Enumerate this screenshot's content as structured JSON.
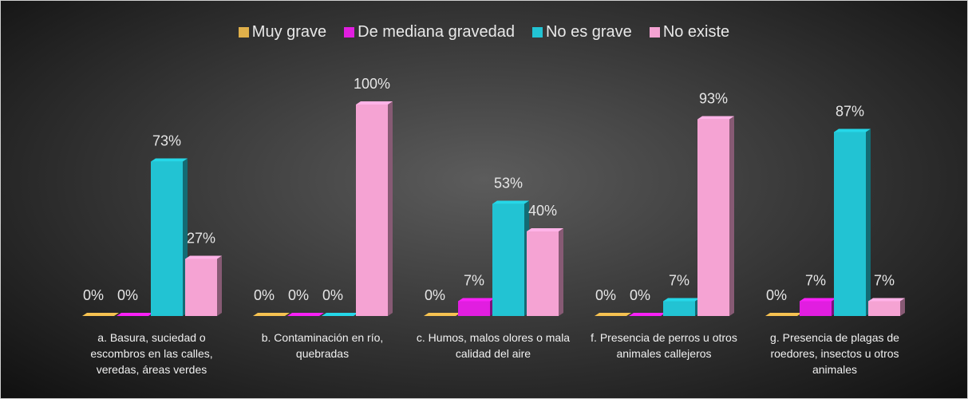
{
  "chart_data": {
    "type": "bar3d",
    "categories": [
      "a. Basura, suciedad o escombros en las calles, veredas, áreas verdes",
      "b. Contaminación en río, quebradas",
      "c. Humos, malos olores o mala calidad del aire",
      "f. Presencia de perros u otros animales callejeros",
      "g.  Presencia de plagas de roedores, insectos u otros animales"
    ],
    "series": [
      {
        "name": "Muy grave",
        "color": "#e0b04a",
        "values": [
          0,
          0,
          0,
          0,
          0
        ],
        "value_labels": [
          "0%",
          "0%",
          "0%",
          "0%",
          "0%"
        ]
      },
      {
        "name": "De mediana gravedad",
        "color": "#e11ee0",
        "values": [
          0,
          0,
          7,
          0,
          7
        ],
        "value_labels": [
          "0%",
          "0%",
          "7%",
          "0%",
          "7%"
        ]
      },
      {
        "name": "No es grave",
        "color": "#22c3d3",
        "values": [
          73,
          0,
          53,
          7,
          87
        ],
        "value_labels": [
          "73%",
          "0%",
          "53%",
          "7%",
          "87%"
        ]
      },
      {
        "name": "No existe",
        "color": "#f5a3d3",
        "values": [
          27,
          100,
          40,
          93,
          7
        ],
        "value_labels": [
          "27%",
          "100%",
          "40%",
          "93%",
          "7%"
        ]
      }
    ],
    "ylim": [
      0,
      100
    ],
    "legend": "top"
  }
}
